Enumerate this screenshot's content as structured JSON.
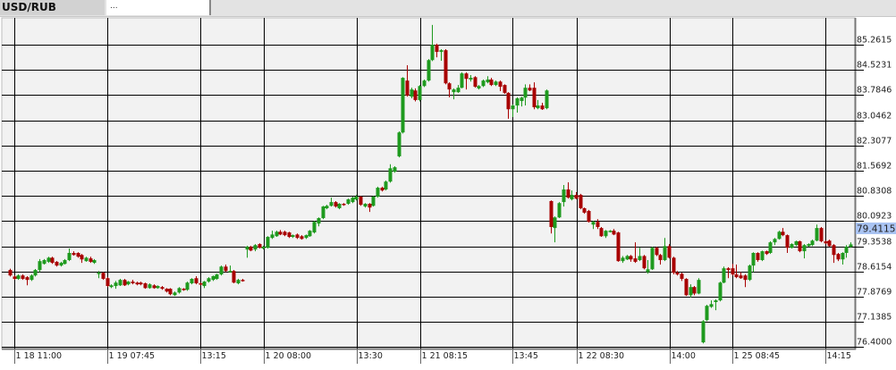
{
  "tabs": [
    {
      "label": "USD/RUB",
      "active": true
    },
    {
      "label": "...",
      "active": false
    }
  ],
  "colors": {
    "up": "#1e9a1e",
    "down": "#a80000",
    "grid": "#000000",
    "background": "#f2f2f2",
    "current_price_bg": "#a9c3f2"
  },
  "chart_data": {
    "type": "candlestick",
    "symbol": "USD/RUB",
    "y_ticks": [
      "85.2615",
      "84.5231",
      "83.7846",
      "83.0462",
      "82.3077",
      "81.5692",
      "80.8308",
      "80.0923",
      "79.3538",
      "78.6154",
      "77.8769",
      "77.1385",
      "76.4000"
    ],
    "ylim": [
      76.4,
      85.2615
    ],
    "x_ticks": [
      "1 18 11:00",
      "1 19 07:45",
      "13:15",
      "1 20 08:00",
      "13:30",
      "1 21 08:15",
      "13:45",
      "1 22 08:30",
      "14:00",
      "1 25 08:45",
      "14:15"
    ],
    "current_price": "79.4115",
    "grid": true,
    "ohlc_fields": [
      "open",
      "high",
      "low",
      "close"
    ],
    "candles": [
      [
        78.66,
        78.7,
        78.47,
        78.5
      ],
      [
        78.47,
        78.5,
        78.37,
        78.4
      ],
      [
        78.4,
        78.53,
        78.37,
        78.5
      ],
      [
        78.5,
        78.53,
        78.37,
        78.4
      ],
      [
        78.45,
        78.48,
        78.21,
        78.37
      ],
      [
        78.37,
        78.53,
        78.34,
        78.5
      ],
      [
        78.5,
        78.69,
        78.47,
        78.66
      ],
      [
        78.66,
        78.98,
        78.6,
        78.92
      ],
      [
        78.84,
        78.98,
        78.82,
        78.95
      ],
      [
        78.9,
        79.05,
        78.87,
        79.02
      ],
      [
        79.02,
        79.05,
        78.84,
        78.87
      ],
      [
        78.9,
        78.92,
        78.76,
        78.79
      ],
      [
        78.79,
        78.9,
        78.76,
        78.87
      ],
      [
        78.84,
        78.98,
        78.82,
        78.95
      ],
      [
        78.95,
        79.29,
        78.92,
        79.16
      ],
      [
        79.16,
        79.21,
        79.08,
        79.1
      ],
      [
        79.16,
        79.18,
        79.02,
        79.05
      ],
      [
        79.1,
        79.13,
        78.87,
        78.97
      ],
      [
        78.92,
        79.05,
        78.9,
        79.02
      ],
      [
        79.0,
        79.05,
        78.87,
        78.9
      ],
      [
        78.87,
        78.98,
        78.84,
        78.95
      ],
      [
        78.55,
        78.63,
        78.42,
        78.58
      ],
      [
        78.58,
        78.6,
        78.37,
        78.4
      ],
      [
        78.42,
        78.45,
        78.16,
        78.19
      ],
      [
        78.16,
        78.24,
        78.13,
        78.21
      ],
      [
        78.19,
        78.34,
        78.11,
        78.29
      ],
      [
        78.21,
        78.4,
        78.19,
        78.37
      ],
      [
        78.37,
        78.4,
        78.19,
        78.21
      ],
      [
        78.24,
        78.34,
        78.21,
        78.32
      ],
      [
        78.32,
        78.37,
        78.24,
        78.27
      ],
      [
        78.29,
        78.32,
        78.21,
        78.24
      ],
      [
        78.29,
        78.32,
        78.21,
        78.24
      ],
      [
        78.27,
        78.29,
        78.11,
        78.13
      ],
      [
        78.13,
        78.27,
        78.11,
        78.24
      ],
      [
        78.21,
        78.24,
        78.11,
        78.13
      ],
      [
        78.13,
        78.21,
        78.11,
        78.19
      ],
      [
        78.16,
        78.19,
        78.08,
        78.11
      ],
      [
        78.11,
        78.13,
        78.0,
        78.03
      ],
      [
        78.11,
        78.13,
        77.92,
        77.95
      ],
      [
        77.92,
        78.03,
        77.9,
        78.0
      ],
      [
        78.0,
        78.16,
        77.97,
        78.13
      ],
      [
        78.11,
        78.13,
        78.05,
        78.08
      ],
      [
        78.08,
        78.32,
        78.05,
        78.29
      ],
      [
        78.27,
        78.42,
        78.24,
        78.4
      ],
      [
        78.42,
        78.48,
        78.24,
        78.27
      ],
      [
        78.27,
        78.29,
        78.21,
        78.24
      ],
      [
        78.19,
        78.34,
        78.13,
        78.32
      ],
      [
        78.32,
        78.45,
        78.29,
        78.42
      ],
      [
        78.37,
        78.5,
        78.34,
        78.48
      ],
      [
        78.4,
        78.55,
        78.37,
        78.53
      ],
      [
        78.53,
        78.79,
        78.5,
        78.76
      ],
      [
        78.76,
        78.82,
        78.6,
        78.63
      ],
      [
        78.6,
        78.79,
        78.58,
        78.63
      ],
      [
        78.63,
        78.66,
        78.27,
        78.29
      ],
      [
        78.27,
        78.4,
        78.24,
        78.37
      ],
      [
        78.37,
        78.4,
        78.32,
        78.34
      ],
      [
        79.26,
        79.37,
        79.02,
        79.34
      ],
      [
        79.34,
        79.37,
        79.21,
        79.23
      ],
      [
        79.26,
        79.42,
        79.21,
        79.39
      ],
      [
        79.42,
        79.44,
        79.29,
        79.31
      ],
      [
        79.29,
        79.37,
        79.26,
        79.34
      ],
      [
        79.31,
        79.65,
        79.29,
        79.63
      ],
      [
        79.6,
        79.81,
        79.57,
        79.7
      ],
      [
        79.65,
        79.81,
        79.63,
        79.78
      ],
      [
        79.78,
        79.83,
        79.68,
        79.7
      ],
      [
        79.78,
        79.81,
        79.65,
        79.68
      ],
      [
        79.76,
        79.78,
        79.6,
        79.63
      ],
      [
        79.63,
        79.7,
        79.6,
        79.68
      ],
      [
        79.7,
        79.73,
        79.57,
        79.6
      ],
      [
        79.65,
        79.68,
        79.55,
        79.57
      ],
      [
        79.6,
        79.7,
        79.57,
        79.68
      ],
      [
        79.65,
        79.83,
        79.63,
        79.81
      ],
      [
        79.76,
        80.1,
        79.73,
        80.07
      ],
      [
        80.02,
        80.2,
        79.94,
        80.18
      ],
      [
        80.18,
        80.54,
        80.15,
        80.52
      ],
      [
        80.47,
        80.57,
        80.44,
        80.54
      ],
      [
        80.54,
        80.78,
        80.52,
        80.65
      ],
      [
        80.65,
        80.68,
        80.49,
        80.52
      ],
      [
        80.47,
        80.62,
        80.44,
        80.6
      ],
      [
        80.6,
        80.62,
        80.54,
        80.57
      ],
      [
        80.6,
        80.75,
        80.57,
        80.73
      ],
      [
        80.65,
        80.81,
        80.62,
        80.78
      ],
      [
        80.73,
        80.86,
        80.7,
        80.81
      ],
      [
        80.81,
        80.83,
        80.54,
        80.57
      ],
      [
        80.52,
        80.62,
        80.49,
        80.6
      ],
      [
        80.6,
        80.62,
        80.36,
        80.49
      ],
      [
        80.54,
        80.83,
        80.52,
        80.81
      ],
      [
        80.81,
        81.1,
        80.78,
        81.07
      ],
      [
        81.07,
        81.1,
        80.96,
        80.99
      ],
      [
        81.02,
        81.28,
        80.99,
        81.25
      ],
      [
        81.25,
        81.76,
        81.22,
        81.64
      ],
      [
        81.54,
        81.7,
        81.51,
        81.67
      ],
      [
        81.99,
        82.72,
        81.96,
        82.69
      ],
      [
        82.69,
        84.31,
        82.66,
        84.29
      ],
      [
        84.21,
        84.66,
        83.74,
        83.77
      ],
      [
        83.74,
        84.0,
        83.69,
        83.95
      ],
      [
        83.92,
        83.98,
        83.6,
        83.64
      ],
      [
        83.64,
        84.08,
        83.6,
        84.05
      ],
      [
        84.05,
        84.24,
        84.02,
        84.21
      ],
      [
        84.21,
        84.84,
        84.18,
        84.81
      ],
      [
        84.81,
        85.84,
        84.78,
        85.26
      ],
      [
        85.26,
        85.29,
        84.89,
        85.05
      ],
      [
        85.05,
        85.13,
        84.79,
        85.1
      ],
      [
        85.1,
        85.13,
        84.1,
        84.13
      ],
      [
        84.13,
        84.16,
        83.72,
        83.95
      ],
      [
        83.87,
        83.98,
        83.66,
        83.95
      ],
      [
        83.87,
        84.08,
        83.85,
        84.0
      ],
      [
        84.0,
        84.45,
        83.98,
        84.42
      ],
      [
        84.42,
        84.45,
        83.95,
        84.26
      ],
      [
        84.24,
        84.37,
        84.18,
        84.29
      ],
      [
        84.31,
        84.34,
        84.0,
        84.03
      ],
      [
        83.98,
        84.08,
        83.95,
        84.05
      ],
      [
        84.05,
        84.24,
        84.02,
        84.21
      ],
      [
        84.16,
        84.34,
        84.13,
        84.24
      ],
      [
        84.24,
        84.29,
        84.05,
        84.08
      ],
      [
        84.08,
        84.21,
        84.05,
        84.18
      ],
      [
        84.18,
        84.21,
        83.9,
        84.03
      ],
      [
        84.08,
        84.1,
        83.82,
        83.85
      ],
      [
        83.85,
        83.87,
        83.09,
        83.37
      ],
      [
        83.37,
        83.51,
        83.14,
        83.48
      ],
      [
        83.48,
        83.72,
        83.27,
        83.69
      ],
      [
        83.61,
        83.74,
        83.45,
        83.71
      ],
      [
        83.71,
        84.1,
        83.48,
        84.0
      ],
      [
        84.0,
        84.1,
        83.9,
        83.92
      ],
      [
        84.0,
        84.16,
        83.37,
        83.43
      ],
      [
        83.4,
        83.64,
        83.37,
        83.48
      ],
      [
        83.48,
        83.56,
        83.35,
        83.37
      ],
      [
        83.4,
        83.95,
        83.37,
        83.92
      ],
      [
        80.68,
        80.7,
        79.73,
        79.92
      ],
      [
        79.89,
        80.23,
        79.47,
        80.2
      ],
      [
        80.2,
        80.65,
        80.18,
        80.62
      ],
      [
        80.65,
        81.15,
        80.52,
        81.02
      ],
      [
        81.02,
        81.23,
        80.75,
        80.78
      ],
      [
        80.73,
        80.99,
        80.7,
        80.86
      ],
      [
        80.86,
        80.94,
        80.73,
        80.75
      ],
      [
        80.86,
        80.89,
        80.44,
        80.47
      ],
      [
        80.47,
        80.49,
        80.31,
        80.34
      ],
      [
        80.39,
        80.42,
        80.05,
        80.07
      ],
      [
        79.99,
        80.1,
        79.86,
        80.07
      ],
      [
        80.07,
        80.15,
        79.86,
        79.92
      ],
      [
        79.89,
        79.92,
        79.63,
        79.65
      ],
      [
        79.65,
        79.83,
        79.6,
        79.81
      ],
      [
        79.78,
        79.83,
        79.76,
        79.81
      ],
      [
        79.81,
        79.86,
        79.68,
        79.7
      ],
      [
        79.76,
        79.78,
        78.9,
        78.92
      ],
      [
        78.92,
        79.07,
        78.87,
        79.02
      ],
      [
        78.97,
        79.1,
        78.95,
        79.07
      ],
      [
        79.07,
        79.1,
        78.9,
        78.97
      ],
      [
        79.0,
        79.47,
        78.87,
        78.9
      ],
      [
        78.95,
        79.31,
        78.92,
        79.07
      ],
      [
        79.07,
        79.1,
        78.68,
        78.71
      ],
      [
        78.6,
        78.95,
        78.55,
        78.68
      ],
      [
        78.68,
        79.34,
        78.66,
        79.31
      ],
      [
        79.31,
        79.34,
        79.07,
        79.1
      ],
      [
        79.1,
        79.13,
        78.82,
        78.95
      ],
      [
        78.95,
        79.6,
        78.92,
        79.36
      ],
      [
        79.36,
        79.42,
        79.0,
        79.02
      ],
      [
        79.02,
        79.05,
        78.53,
        78.58
      ],
      [
        78.58,
        78.63,
        78.5,
        78.53
      ],
      [
        78.55,
        78.58,
        78.34,
        78.4
      ],
      [
        78.4,
        78.42,
        77.9,
        77.92
      ],
      [
        77.92,
        78.24,
        77.85,
        78.16
      ],
      [
        78.16,
        78.19,
        77.92,
        77.97
      ],
      [
        77.97,
        78.42,
        77.95,
        78.37
      ],
      [
        76.54,
        77.19,
        76.51,
        77.16
      ],
      [
        77.19,
        77.64,
        77.16,
        77.61
      ],
      [
        77.58,
        77.77,
        77.55,
        77.66
      ],
      [
        77.72,
        77.8,
        77.48,
        77.77
      ],
      [
        77.77,
        78.32,
        77.74,
        78.29
      ],
      [
        78.29,
        78.76,
        78.27,
        78.71
      ],
      [
        78.71,
        78.74,
        78.42,
        78.66
      ],
      [
        78.71,
        78.84,
        78.5,
        78.53
      ],
      [
        78.53,
        78.82,
        78.42,
        78.45
      ],
      [
        78.5,
        78.6,
        78.4,
        78.42
      ],
      [
        78.5,
        78.53,
        78.16,
        78.37
      ],
      [
        78.37,
        78.82,
        78.34,
        78.79
      ],
      [
        78.79,
        79.18,
        78.6,
        79.16
      ],
      [
        79.16,
        79.18,
        78.9,
        78.95
      ],
      [
        78.95,
        79.23,
        78.92,
        79.21
      ],
      [
        79.21,
        79.23,
        79.1,
        79.13
      ],
      [
        79.16,
        79.5,
        79.13,
        79.47
      ],
      [
        79.47,
        79.6,
        79.39,
        79.57
      ],
      [
        79.57,
        79.81,
        79.55,
        79.78
      ],
      [
        79.78,
        79.89,
        79.65,
        79.68
      ],
      [
        79.68,
        79.7,
        79.16,
        79.31
      ],
      [
        79.31,
        79.44,
        79.29,
        79.42
      ],
      [
        79.39,
        79.52,
        79.36,
        79.5
      ],
      [
        79.5,
        79.52,
        79.18,
        79.21
      ],
      [
        79.21,
        79.42,
        79.0,
        79.39
      ],
      [
        79.36,
        79.44,
        79.34,
        79.42
      ],
      [
        79.39,
        79.55,
        79.36,
        79.52
      ],
      [
        79.52,
        79.99,
        79.5,
        79.89
      ],
      [
        79.89,
        79.92,
        79.47,
        79.5
      ],
      [
        79.5,
        79.52,
        79.42,
        79.44
      ],
      [
        79.52,
        79.55,
        79.34,
        79.36
      ],
      [
        79.39,
        79.42,
        78.87,
        79.1
      ],
      [
        79.13,
        79.16,
        78.92,
        78.97
      ],
      [
        78.97,
        79.18,
        78.82,
        79.16
      ],
      [
        79.16,
        79.39,
        79.02,
        79.34
      ],
      [
        79.34,
        79.47,
        79.31,
        79.41
      ]
    ]
  }
}
